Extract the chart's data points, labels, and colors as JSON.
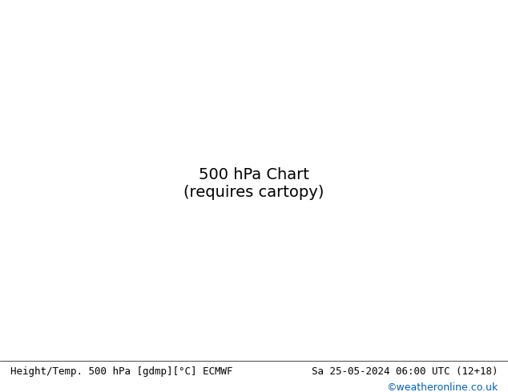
{
  "title_left": "Height/Temp. 500 hPa [gdmp][°C] ECMWF",
  "title_right": "Sa 25-05-2024 06:00 UTC (12+18)",
  "credit": "©weatheronline.co.uk",
  "background_color": "#d0d0d0",
  "land_color": "#e8e8e8",
  "green_fill_color": "#b8e8a0",
  "text_color_black": "#000000",
  "text_color_orange": "#e08000",
  "text_color_green": "#80c000",
  "text_color_cyan": "#00b0b0",
  "height_line_color": "#000000",
  "temp_warm_color": "#e08000",
  "temp_cold_color": "#00b0b0",
  "temp_green_color": "#80c000",
  "font_size_label": 9,
  "font_size_title": 9,
  "extent": [
    -30,
    40,
    35,
    70
  ]
}
